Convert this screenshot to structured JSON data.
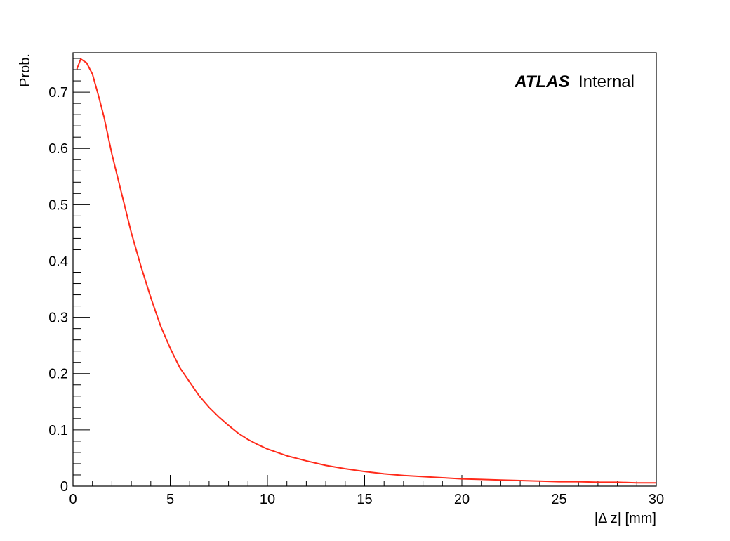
{
  "chart_data": {
    "type": "line",
    "title": "",
    "xlabel": "|Δ z| [mm]",
    "ylabel": "Prob.",
    "xlim": [
      0,
      30
    ],
    "ylim": [
      0,
      0.77
    ],
    "x_ticks": [
      0,
      5,
      10,
      15,
      20,
      25,
      30
    ],
    "y_ticks": [
      0,
      0.1,
      0.2,
      0.3,
      0.4,
      0.5,
      0.6,
      0.7
    ],
    "x_tick_labels": [
      "0",
      "5",
      "10",
      "15",
      "20",
      "25",
      "30"
    ],
    "y_tick_labels": [
      "0",
      "0.1",
      "0.2",
      "0.3",
      "0.4",
      "0.5",
      "0.6",
      "0.7"
    ],
    "grid": false,
    "annotation": {
      "bold": "ATLAS",
      "text": "Internal"
    },
    "series": [
      {
        "color": "#ff2a1a",
        "x": [
          0.2,
          0.4,
          0.7,
          1.0,
          1.3,
          1.6,
          2.0,
          2.5,
          3.0,
          3.5,
          4.0,
          4.5,
          5.0,
          5.5,
          6.0,
          6.5,
          7.0,
          7.5,
          8.0,
          8.5,
          9.0,
          9.5,
          10.0,
          11.0,
          12.0,
          13.0,
          14.0,
          15.0,
          16.0,
          17.0,
          18.0,
          19.0,
          20.0,
          21.0,
          22.0,
          23.0,
          24.0,
          25.0,
          26.0,
          27.0,
          28.0,
          29.0,
          30.0
        ],
        "y": [
          0.741,
          0.759,
          0.752,
          0.732,
          0.695,
          0.655,
          0.59,
          0.52,
          0.45,
          0.39,
          0.335,
          0.285,
          0.245,
          0.21,
          0.185,
          0.16,
          0.14,
          0.123,
          0.108,
          0.094,
          0.083,
          0.074,
          0.066,
          0.054,
          0.045,
          0.037,
          0.031,
          0.026,
          0.022,
          0.019,
          0.017,
          0.015,
          0.013,
          0.012,
          0.011,
          0.01,
          0.009,
          0.008,
          0.008,
          0.007,
          0.007,
          0.006,
          0.006
        ]
      }
    ]
  }
}
